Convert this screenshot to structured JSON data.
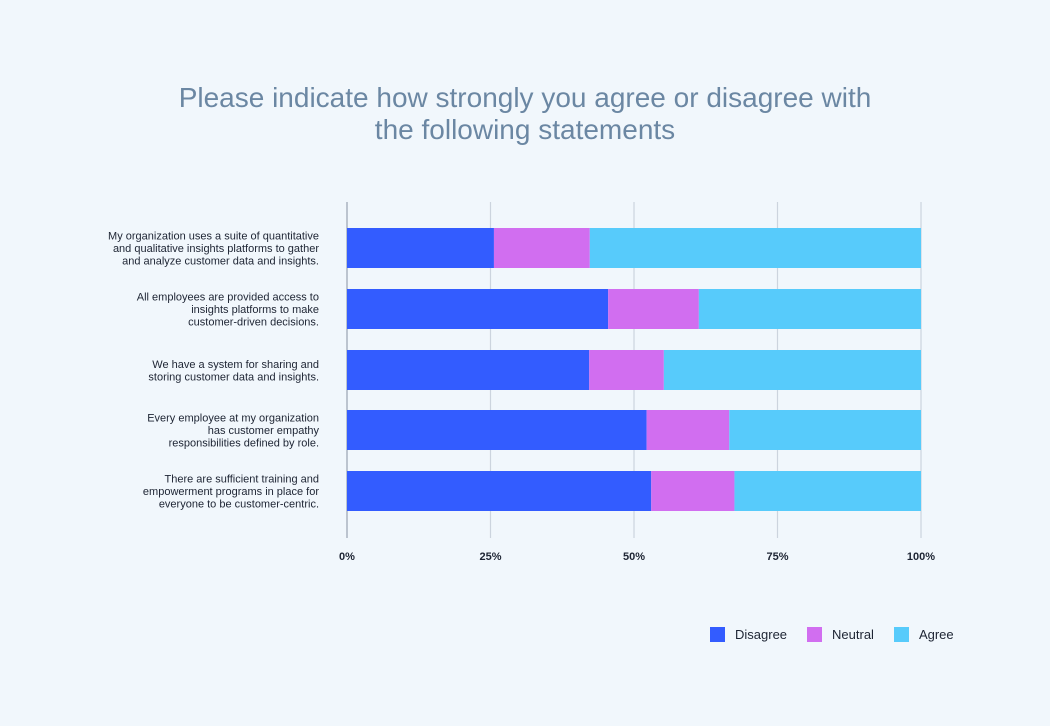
{
  "chart_data": {
    "type": "bar",
    "orientation": "horizontal",
    "stacked": true,
    "title": "Please indicate how strongly you agree or disagree with the following statements",
    "title_lines": [
      "Please indicate how strongly you agree or disagree with",
      "the following statements"
    ],
    "categories": [
      [
        "My organization uses a suite of quantitative",
        "and qualitative insights platforms to gather",
        "and analyze customer data and insights."
      ],
      [
        "All employees are provided access to",
        "insights platforms to make",
        "customer-driven decisions."
      ],
      [
        "We have a system for sharing and",
        "storing customer data and insights."
      ],
      [
        "Every employee at my organization",
        "has customer empathy",
        "responsibilities defined by role."
      ],
      [
        "There are sufficient training and",
        "empowerment programs in place for",
        "everyone to be customer-centric."
      ]
    ],
    "series": [
      {
        "name": "Disagree",
        "color": "#335cff",
        "values": [
          25.6,
          45.5,
          42.2,
          52.2,
          53.0
        ]
      },
      {
        "name": "Neutral",
        "color": "#d16ef0",
        "values": [
          16.7,
          15.8,
          13.0,
          14.4,
          14.5
        ]
      },
      {
        "name": "Agree",
        "color": "#57cbfb",
        "values": [
          57.7,
          38.7,
          44.8,
          33.4,
          32.5
        ]
      }
    ],
    "xlim": [
      0,
      100
    ],
    "xticks": [
      "0%",
      "25%",
      "50%",
      "75%",
      "100%"
    ],
    "xlabel": "",
    "ylabel": "",
    "grid": true,
    "legend_position": "bottom-right"
  }
}
